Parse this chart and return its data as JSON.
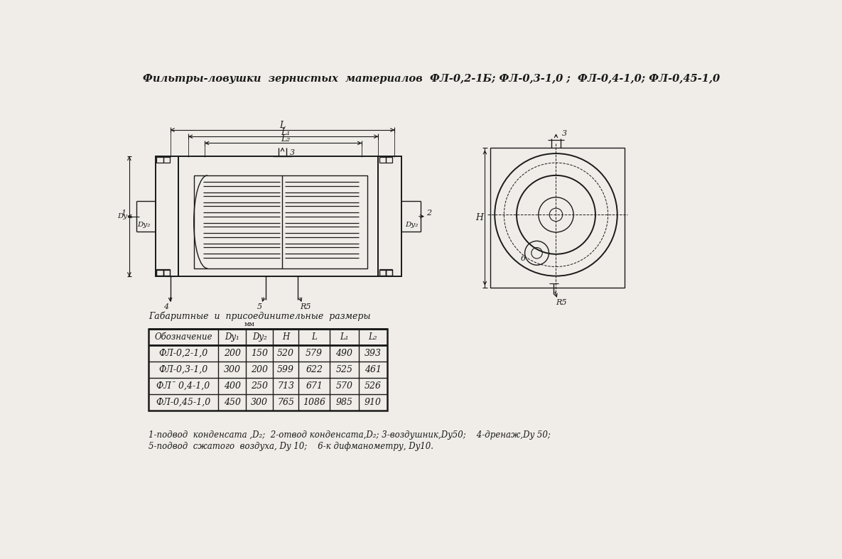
{
  "title": "Фильтры-ловушки  зернистых  материалов  ФЛ-0,2-1Б; ФЛ-0,3-1,0 ;  ФЛ-0,4-1,0; ФЛ-0,45-1,0",
  "table_title": "Габаритные  и  присоединительные  размеры",
  "table_subtitle": "мм",
  "col_headers": [
    "Обозначение",
    "Dy₁",
    "Dy₂",
    "H",
    "L",
    "L₁",
    "L₂"
  ],
  "rows": [
    [
      "ФЛ-0,2-1,0",
      "200",
      "150",
      "520",
      "579",
      "490",
      "393"
    ],
    [
      "ФЛ-0,3-1,0",
      "300",
      "200",
      "599",
      "622",
      "525",
      "461"
    ],
    [
      "ФЛˉ 0,4-1,0",
      "400",
      "250",
      "713",
      "671",
      "570",
      "526"
    ],
    [
      "ФЛ-0,45-1,0",
      "450",
      "300",
      "765",
      "1086",
      "985",
      "910"
    ]
  ],
  "footnote_line1": "1-подвод  конденсата ,D₂;  2-отвод конденсата,D₂; 3-воздушник,Dy50;    4-дренаж,Dy 50;",
  "footnote_line2": "5-подвод  сжатого  воздуха, Dy 10;    6-к дифманометру, Dy10.",
  "bg_color": "#f0ede8",
  "line_color": "#1a1a1a"
}
